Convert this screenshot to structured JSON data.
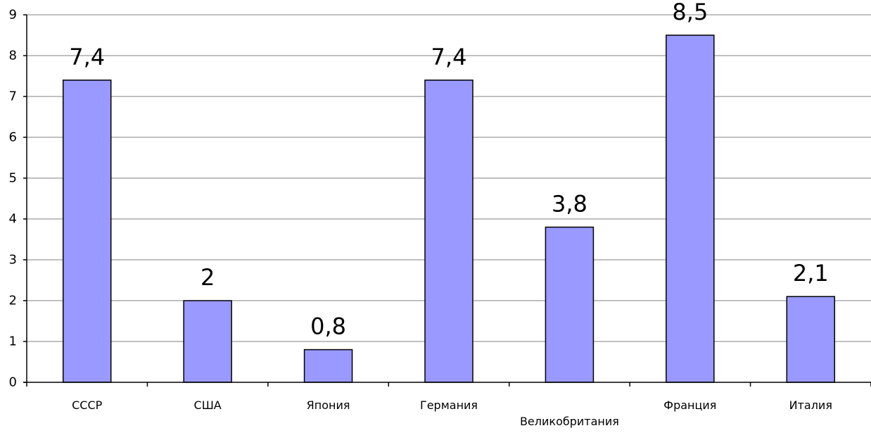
{
  "chart_data": {
    "type": "bar",
    "categories": [
      "СССР",
      "США",
      "Япония",
      "Германия",
      "Великобритания",
      "Франция",
      "Италия"
    ],
    "values": [
      7.4,
      2,
      0.8,
      7.4,
      3.8,
      8.5,
      2.1
    ],
    "data_labels": [
      "7,4",
      "2",
      "0,8",
      "7,4",
      "3,8",
      "8,5",
      "2,1"
    ],
    "ylim": [
      0,
      9
    ],
    "yticks": [
      0,
      1,
      2,
      3,
      4,
      5,
      6,
      7,
      8,
      9
    ],
    "grid": true,
    "legend": "none",
    "title": "",
    "xlabel": "",
    "ylabel": "",
    "bar_color": "#9999ff"
  }
}
